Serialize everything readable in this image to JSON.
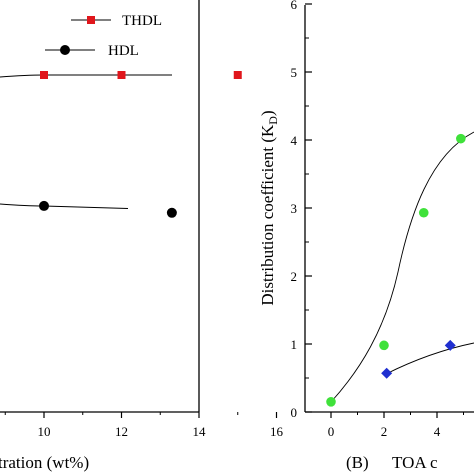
{
  "chart_data": [
    {
      "panel": "left",
      "type": "line",
      "xlabel": "tration (wt%)",
      "ylabel": "",
      "xlim": [
        0,
        16
      ],
      "x_ticks": [
        "10",
        "12",
        "14",
        "16"
      ],
      "legend": {
        "placement": "top-right",
        "entries": [
          "THDL",
          "HDL"
        ]
      },
      "series": [
        {
          "name": "THDL",
          "marker": "square",
          "color": "#e0161c",
          "x": [
            10,
            12,
            15
          ],
          "y": [
            0.595,
            0.595,
            0.595
          ]
        },
        {
          "name": "HDL",
          "marker": "circle",
          "color": "#000000",
          "x": [
            10,
            13.3
          ],
          "y": [
            0.5,
            0.495
          ]
        }
      ],
      "grid": false
    },
    {
      "panel": "B",
      "type": "scatter",
      "panel_label": "(B)",
      "xlabel": "TOA c",
      "ylabel": "Distribution coefficient (K",
      "ylabel_sub": "D",
      "ylabel_close": ")",
      "ylim": [
        0,
        6
      ],
      "y_ticks": [
        "0",
        "1",
        "2",
        "3",
        "4",
        "5",
        "6"
      ],
      "x_ticks": [
        "0",
        "2",
        "4"
      ],
      "series": [
        {
          "marker": "circle",
          "color": "#3fe13a",
          "x": [
            0,
            2,
            3.5,
            4.9
          ],
          "y": [
            0.15,
            0.98,
            2.93,
            4.02
          ]
        },
        {
          "marker": "diamond",
          "color": "#1f2fd0",
          "x": [
            2.1,
            4.5
          ],
          "y": [
            0.57,
            0.98
          ]
        }
      ],
      "grid": false
    }
  ]
}
